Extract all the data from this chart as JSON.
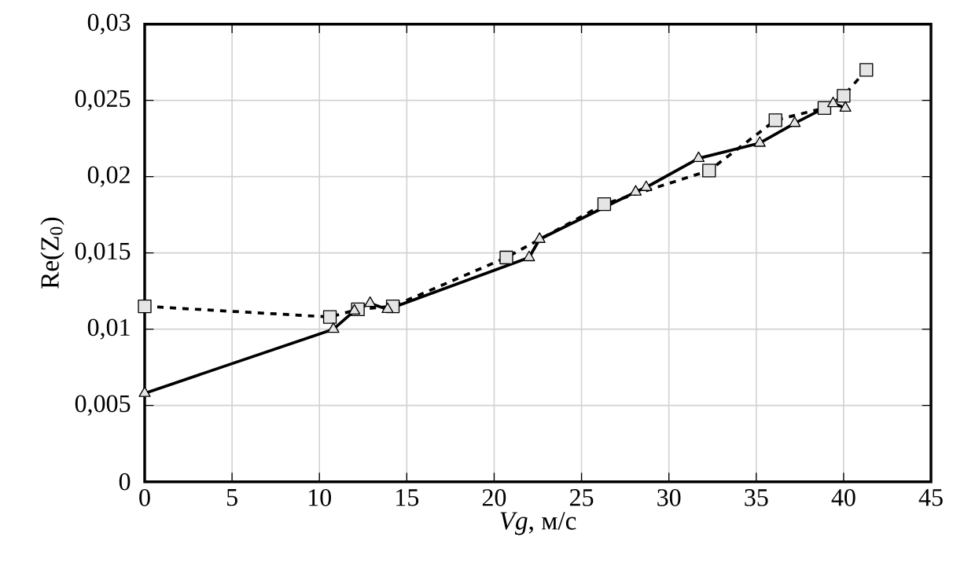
{
  "chart_data": {
    "type": "line",
    "xlabel": "*Vg*, м/с",
    "ylabel": "Re(Z$_{0}$)",
    "xlim": [
      0,
      45
    ],
    "ylim": [
      0,
      0.03
    ],
    "xticks": [
      0,
      5,
      10,
      15,
      20,
      25,
      30,
      35,
      40,
      45
    ],
    "yticks": [
      0,
      {
        "value": 0.005,
        "label": "0,005"
      },
      {
        "value": 0.01,
        "label": "0,01"
      },
      {
        "value": 0.015,
        "label": "0,015"
      },
      {
        "value": 0.02,
        "label": "0,02"
      },
      {
        "value": 0.025,
        "label": "0,025"
      },
      {
        "value": 0.03,
        "label": "0,03"
      }
    ],
    "grid": true,
    "series": [
      {
        "color": "#000000",
        "marker": "square",
        "line_style": "dashed",
        "x": [
          0,
          10.6,
          12.2,
          14.2,
          20.7,
          26.3,
          32.3,
          36.1,
          38.9,
          40.0,
          41.3
        ],
        "values": [
          0.0115,
          0.0108,
          0.0113,
          0.0115,
          0.0147,
          0.0182,
          0.0204,
          0.0237,
          0.0245,
          0.0253,
          0.027
        ]
      },
      {
        "color": "#000000",
        "marker": "triangle",
        "line_style": "solid",
        "x": [
          0,
          10.8,
          12.0,
          12.9,
          13.9,
          22.0,
          22.6,
          28.1,
          28.7,
          31.7,
          35.2,
          37.2,
          39.4,
          40.1
        ],
        "values": [
          0.0058,
          0.01,
          0.0112,
          0.0117,
          0.0113,
          0.0147,
          0.0159,
          0.019,
          0.0193,
          0.0212,
          0.0222,
          0.0235,
          0.0248,
          0.0245
        ]
      }
    ]
  }
}
